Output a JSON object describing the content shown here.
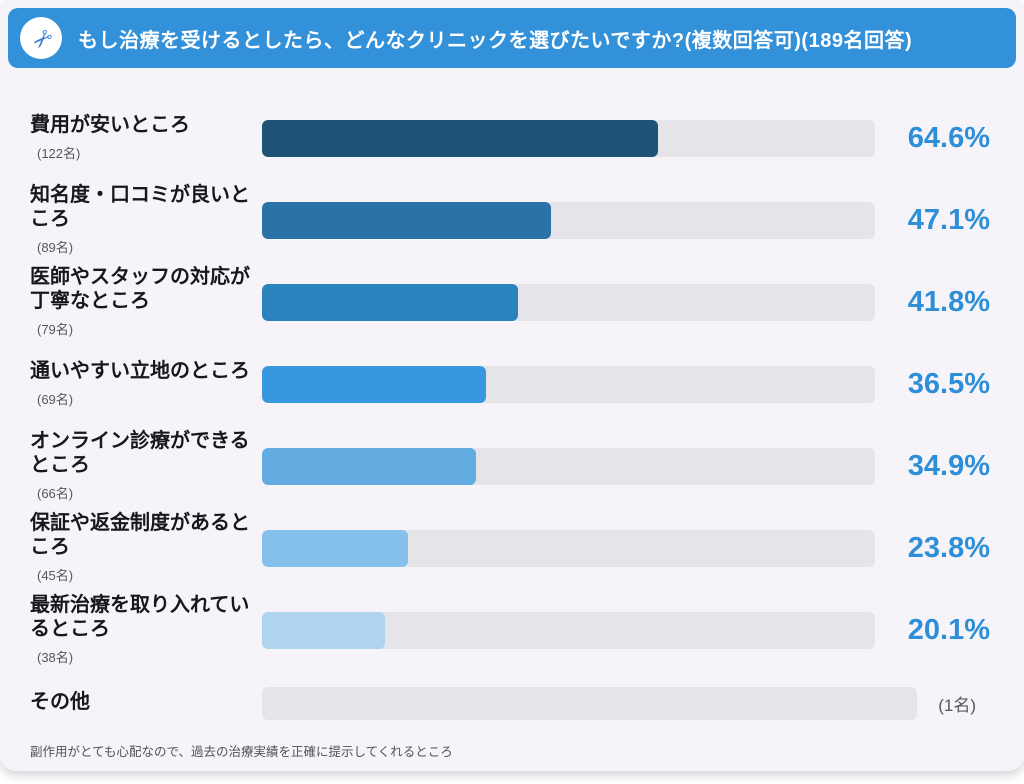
{
  "header": {
    "title": "もし治療を受けるとしたら、どんなクリニックを選びたいですか?(複数回答可)(189名回答)",
    "bg_color": "#3291d9",
    "icon": "scissors-icon",
    "icon_glyph": "✂"
  },
  "chart_data": {
    "type": "bar",
    "orientation": "horizontal",
    "title": "もし治療を受けるとしたら、どんなクリニックを選びたいですか?",
    "note": "複数回答可",
    "respondents": "189名回答",
    "xlim": [
      0,
      100
    ],
    "grid": false,
    "legend": false,
    "track_color": "#e5e4e8",
    "value_color": "#2e8fd8",
    "rows": [
      {
        "label": "費用が安いところ",
        "count": "(122名)",
        "value": 64.6,
        "value_label": "64.6%",
        "color": "#1e5276"
      },
      {
        "label": "知名度・口コミが良いところ",
        "count": "(89名)",
        "value": 47.1,
        "value_label": "47.1%",
        "color": "#2b73a7"
      },
      {
        "label": "医師やスタッフの対応が丁寧なところ",
        "count": "(79名)",
        "value": 41.8,
        "value_label": "41.8%",
        "color": "#2b83bd"
      },
      {
        "label": "通いやすい立地のところ",
        "count": "(69名)",
        "value": 36.5,
        "value_label": "36.5%",
        "color": "#3997de"
      },
      {
        "label": "オンライン診療ができるところ",
        "count": "(66名)",
        "value": 34.9,
        "value_label": "34.9%",
        "color": "#63ace2"
      },
      {
        "label": "保証や返金制度があるところ",
        "count": "(45名)",
        "value": 23.8,
        "value_label": "23.8%",
        "color": "#85c0eb"
      },
      {
        "label": "最新治療を取り入れているところ",
        "count": "(38名)",
        "value": 20.1,
        "value_label": "20.1%",
        "color": "#aed4f0"
      }
    ],
    "other_row": {
      "label": "その他",
      "count": "(1名)",
      "value": 0.5,
      "note": "副作用がとても心配なので、過去の治療実績を正確に提示してくれるところ"
    }
  }
}
